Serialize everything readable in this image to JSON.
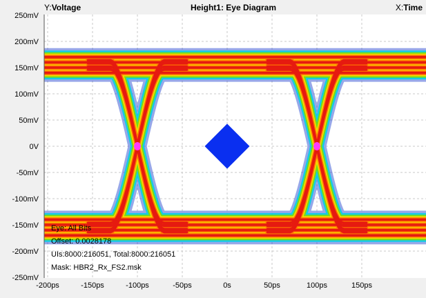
{
  "header": {
    "y_prefix": "Y:",
    "y_label": "Voltage",
    "title": "Height1: Eye Diagram",
    "x_prefix": "X:",
    "x_label": "Time"
  },
  "info": {
    "line1": "Eye: All Bits",
    "line2": "Offset: 0.0028178",
    "line3": "UIs:8000:216051, Total:8000:216051",
    "line4": "Mask: HBR2_Rx_FS2.msk"
  },
  "colors": {
    "plot_background": "#ffffff",
    "chrome_background": "#f0f0f0",
    "density_low": "#1a3fd0",
    "density_mid_low": "#00d0e8",
    "density_mid": "#7fe000",
    "density_mid_high": "#ffd800",
    "density_high": "#ff7a00",
    "density_peak": "#e61a10",
    "crossing_point": "#ff3cff",
    "mask": "#0a2ff0"
  },
  "chart_data": {
    "type": "heatmap",
    "subtype": "eye-diagram",
    "title": "Height1: Eye Diagram",
    "xlabel": "Time",
    "ylabel": "Voltage",
    "xlim": [
      -200,
      200
    ],
    "x_unit": "ps",
    "ylim": [
      -250,
      250
    ],
    "y_unit": "mV",
    "grid": true,
    "x_ticks": [
      {
        "value": -200,
        "label": "-200ps"
      },
      {
        "value": -150,
        "label": "-150ps"
      },
      {
        "value": -100,
        "label": "-100ps"
      },
      {
        "value": -50,
        "label": "-50ps"
      },
      {
        "value": 0,
        "label": "0s"
      },
      {
        "value": 50,
        "label": "50ps"
      },
      {
        "value": 100,
        "label": "100ps"
      },
      {
        "value": 150,
        "label": "150ps"
      }
    ],
    "y_ticks": [
      {
        "value": 250,
        "label": "250mV"
      },
      {
        "value": 200,
        "label": "200mV"
      },
      {
        "value": 150,
        "label": "150mV"
      },
      {
        "value": 100,
        "label": "100mV"
      },
      {
        "value": 50,
        "label": "50mV"
      },
      {
        "value": 0,
        "label": "0V"
      },
      {
        "value": -50,
        "label": "-50mV"
      },
      {
        "value": -100,
        "label": "-100mV"
      },
      {
        "value": -150,
        "label": "-150mV"
      },
      {
        "value": -200,
        "label": "-200mV"
      },
      {
        "value": -250,
        "label": "-250mV"
      }
    ],
    "high_level_mv": 155,
    "low_level_mv": -155,
    "rail_band_mv": [
      125,
      180
    ],
    "trace_spread_mv": 25,
    "crossings_ps": [
      -100,
      100
    ],
    "crossing_level_mv": 0,
    "transition_time_ps": 60,
    "mask": {
      "name": "HBR2_Rx_FS2.msk",
      "polygon": [
        [
          -25,
          0
        ],
        [
          0,
          43
        ],
        [
          25,
          0
        ],
        [
          0,
          -43
        ]
      ]
    },
    "statistics": {
      "offset": 0.0028178,
      "uis": "8000:216051",
      "total": "8000:216051"
    }
  }
}
